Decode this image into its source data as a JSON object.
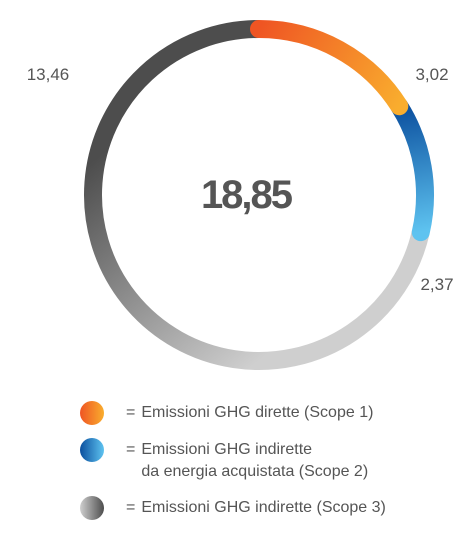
{
  "chart_data": {
    "type": "donut",
    "total": {
      "value": 18.85,
      "label": "18,85"
    },
    "categories": [
      "Emissioni GHG dirette (Scope 1)",
      "Emissioni GHG indirette\nda energia acquistata (Scope 2)",
      "Emissioni GHG indirette (Scope 3)"
    ],
    "values": [
      3.02,
      2.37,
      13.46
    ],
    "value_labels": [
      "3,02",
      "2,37",
      "13,46"
    ],
    "colors": [
      {
        "from": "#ef5523",
        "to": "#f9ad2e"
      },
      {
        "from": "#0b4f9e",
        "to": "#5ec3f0"
      },
      {
        "from": "#cfcfcf",
        "to": "#4d4d4d"
      }
    ],
    "legend_prefix": "="
  }
}
